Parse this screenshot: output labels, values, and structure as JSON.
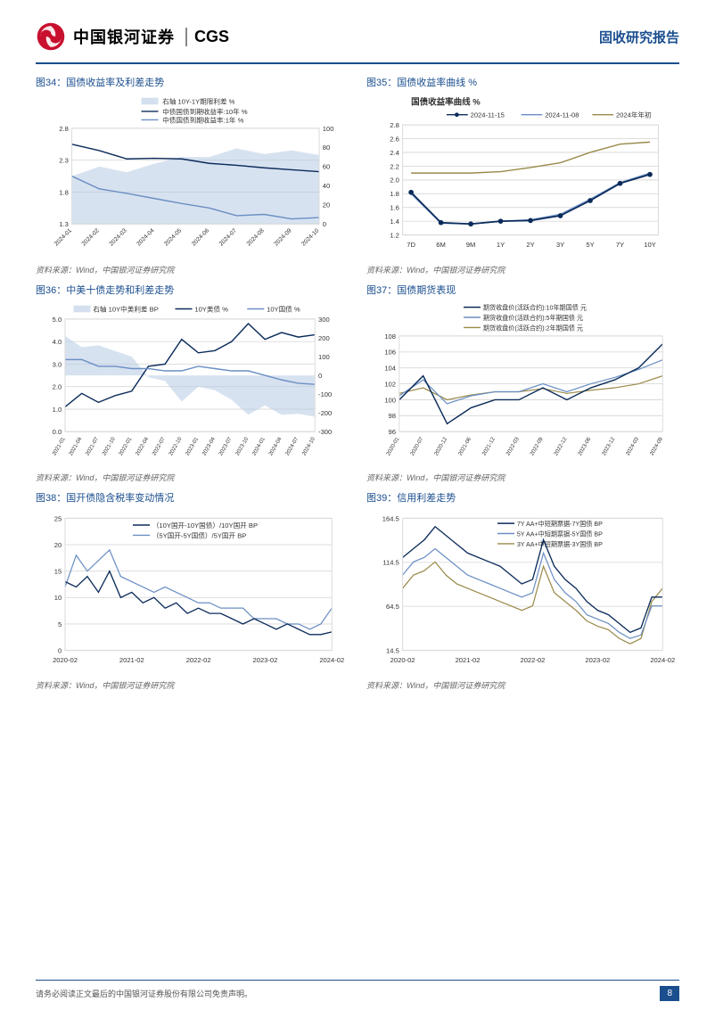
{
  "header": {
    "brand_cn": "中国银河证券",
    "brand_en": "CGS",
    "report_type": "固收研究报告"
  },
  "source_text": "资料来源：Wind，中国银河证券研究院",
  "footer": {
    "disclaimer": "请务必阅读正文最后的中国银河证券股份有限公司免责声明。",
    "page": "8"
  },
  "colors": {
    "brand_red": "#c8102e",
    "brand_blue": "#1a4e8e",
    "navy": "#0b2b5a",
    "mid_blue": "#6b8fc4",
    "light_blue": "#b7cbe4",
    "khaki": "#9a8a4a",
    "grid": "#d9d9d9",
    "text_dark": "#333"
  },
  "charts": {
    "c34": {
      "title": "图34：国债收益率及利差走势",
      "legend": [
        "右轴 10Y-1Y期限利差 %",
        "中债国债到期收益率:10年 %",
        "中债国债到期收益率:1年 %"
      ],
      "x_labels": [
        "2024-01",
        "2024-02",
        "2024-03",
        "2024-04",
        "2024-05",
        "2024-06",
        "2024-07",
        "2024-08",
        "2024-09",
        "2024-10"
      ],
      "y_left": {
        "min": 1.3,
        "max": 2.8,
        "ticks": [
          1.3,
          1.8,
          2.3,
          2.8
        ]
      },
      "y_right": {
        "min": 0,
        "max": 100,
        "ticks": [
          0,
          20,
          40,
          60,
          80,
          100
        ]
      },
      "series_10y": [
        2.55,
        2.45,
        2.32,
        2.33,
        2.32,
        2.25,
        2.22,
        2.18,
        2.15,
        2.12
      ],
      "series_1y": [
        2.05,
        1.85,
        1.78,
        1.7,
        1.62,
        1.55,
        1.43,
        1.45,
        1.38,
        1.4
      ],
      "series_spread": [
        50,
        60,
        54,
        63,
        70,
        70,
        79,
        73,
        77,
        72
      ]
    },
    "c35": {
      "title": "图35：国债收益率曲线 %",
      "inner_title": "国债收益率曲线 %",
      "legend": [
        "2024-11-15",
        "2024-11-08",
        "2024年年初"
      ],
      "x_labels": [
        "7D",
        "6M",
        "9M",
        "1Y",
        "2Y",
        "3Y",
        "5Y",
        "7Y",
        "10Y"
      ],
      "y": {
        "min": 1.2,
        "max": 2.8,
        "ticks": [
          1.2,
          1.4,
          1.6,
          1.8,
          2.0,
          2.2,
          2.4,
          2.6,
          2.8
        ]
      },
      "s1": [
        1.82,
        1.38,
        1.36,
        1.4,
        1.41,
        1.48,
        1.7,
        1.95,
        2.08
      ],
      "s2": [
        1.8,
        1.37,
        1.36,
        1.4,
        1.42,
        1.5,
        1.72,
        1.96,
        2.1
      ],
      "s3": [
        2.1,
        2.1,
        2.1,
        2.12,
        2.18,
        2.25,
        2.4,
        2.52,
        2.55
      ]
    },
    "c36": {
      "title": "图36：中美十债走势和利差走势",
      "legend": [
        "右轴 10Y中美利差 BP",
        "10Y美债 %",
        "10Y国债 %"
      ],
      "x_labels": [
        "2021-01",
        "2021-04",
        "2021-07",
        "2021-10",
        "2022-01",
        "2022-04",
        "2022-07",
        "2022-10",
        "2023-01",
        "2023-04",
        "2023-07",
        "2023-10",
        "2024-01",
        "2024-04",
        "2024-07",
        "2024-10"
      ],
      "y_left": {
        "min": 0,
        "max": 5,
        "ticks": [
          0,
          1,
          2,
          3,
          4,
          5
        ]
      },
      "y_right": {
        "min": -300,
        "max": 300,
        "ticks": [
          -300,
          -200,
          -100,
          0,
          100,
          200,
          300
        ]
      },
      "us10y": [
        1.1,
        1.7,
        1.3,
        1.6,
        1.8,
        2.9,
        3.0,
        4.1,
        3.5,
        3.6,
        4.0,
        4.8,
        4.1,
        4.4,
        4.2,
        4.3
      ],
      "cn10y": [
        3.2,
        3.2,
        2.9,
        2.9,
        2.8,
        2.8,
        2.7,
        2.7,
        2.9,
        2.8,
        2.7,
        2.7,
        2.5,
        2.3,
        2.15,
        2.1
      ],
      "spread": [
        210,
        150,
        160,
        130,
        100,
        -10,
        -30,
        -140,
        -60,
        -80,
        -130,
        -210,
        -160,
        -210,
        -205,
        -220
      ]
    },
    "c37": {
      "title": "图37：国债期货表现",
      "legend": [
        "期货收盘价(活跃合约):10年期国债 元",
        "期货收盘价(活跃合约):5年期国债 元",
        "期货收盘价(活跃合约):2年期国债 元"
      ],
      "x_labels": [
        "2020-01",
        "2020-07",
        "2020-12",
        "2021-06",
        "2021-12",
        "2022-03",
        "2022-09",
        "2022-12",
        "2023-06",
        "2023-12",
        "2024-03",
        "2024-09"
      ],
      "y": {
        "min": 96,
        "max": 108,
        "ticks": [
          96,
          98,
          100,
          102,
          104,
          106,
          108
        ]
      },
      "s10": [
        100,
        103,
        97,
        99,
        100,
        100,
        101.5,
        100,
        101.5,
        102.5,
        104,
        107
      ],
      "s5": [
        100.5,
        102.5,
        99.5,
        100.5,
        101,
        101,
        102,
        101,
        102,
        102.8,
        103.8,
        105
      ],
      "s2": [
        100.8,
        101.5,
        100,
        100.6,
        101,
        101,
        101.4,
        100.8,
        101.2,
        101.5,
        102,
        103
      ]
    },
    "c38": {
      "title": "图38：国开债隐含税率变动情况",
      "legend": [
        "（10Y国开-10Y国债）/10Y国开 BP",
        "（5Y国开-5Y国债）/5Y国开 BP"
      ],
      "x_labels": [
        "2020-02",
        "2021-02",
        "2022-02",
        "2023-02",
        "2024-02"
      ],
      "y": {
        "min": 0,
        "max": 25,
        "ticks": [
          0,
          5,
          10,
          15,
          20,
          25
        ]
      },
      "s10": [
        13,
        12,
        14,
        11,
        15,
        10,
        11,
        9,
        10,
        8,
        9,
        7,
        8,
        7,
        7,
        6,
        5,
        6,
        5,
        4,
        5,
        4,
        3,
        3,
        3.5
      ],
      "s5": [
        12,
        18,
        15,
        17,
        19,
        14,
        13,
        12,
        11,
        12,
        11,
        10,
        9,
        9,
        8,
        8,
        8,
        6,
        6,
        6,
        5,
        5,
        4,
        5,
        8
      ]
    },
    "c39": {
      "title": "图39：信用利差走势",
      "legend": [
        "7Y AA+中短期票据-7Y国债 BP",
        "5Y AA+中短期票据-5Y国债 BP",
        "3Y AA+中短期票据-3Y国债 BP"
      ],
      "x_labels": [
        "2020-02",
        "2021-02",
        "2022-02",
        "2023-02",
        "2024-02"
      ],
      "y": {
        "min": 14.5,
        "max": 164.5,
        "ticks": [
          14.5,
          64.5,
          114.5,
          164.5
        ]
      },
      "s7": [
        120,
        130,
        140,
        155,
        145,
        135,
        125,
        120,
        115,
        110,
        100,
        90,
        95,
        140,
        110,
        95,
        85,
        70,
        60,
        55,
        45,
        35,
        40,
        75,
        75
      ],
      "s5": [
        100,
        115,
        120,
        130,
        120,
        110,
        100,
        95,
        90,
        85,
        80,
        75,
        80,
        125,
        95,
        80,
        70,
        55,
        50,
        45,
        35,
        28,
        32,
        65,
        65
      ],
      "s3": [
        85,
        100,
        105,
        115,
        100,
        90,
        85,
        80,
        75,
        70,
        65,
        60,
        65,
        110,
        80,
        70,
        60,
        48,
        42,
        38,
        28,
        22,
        28,
        70,
        85
      ]
    }
  }
}
